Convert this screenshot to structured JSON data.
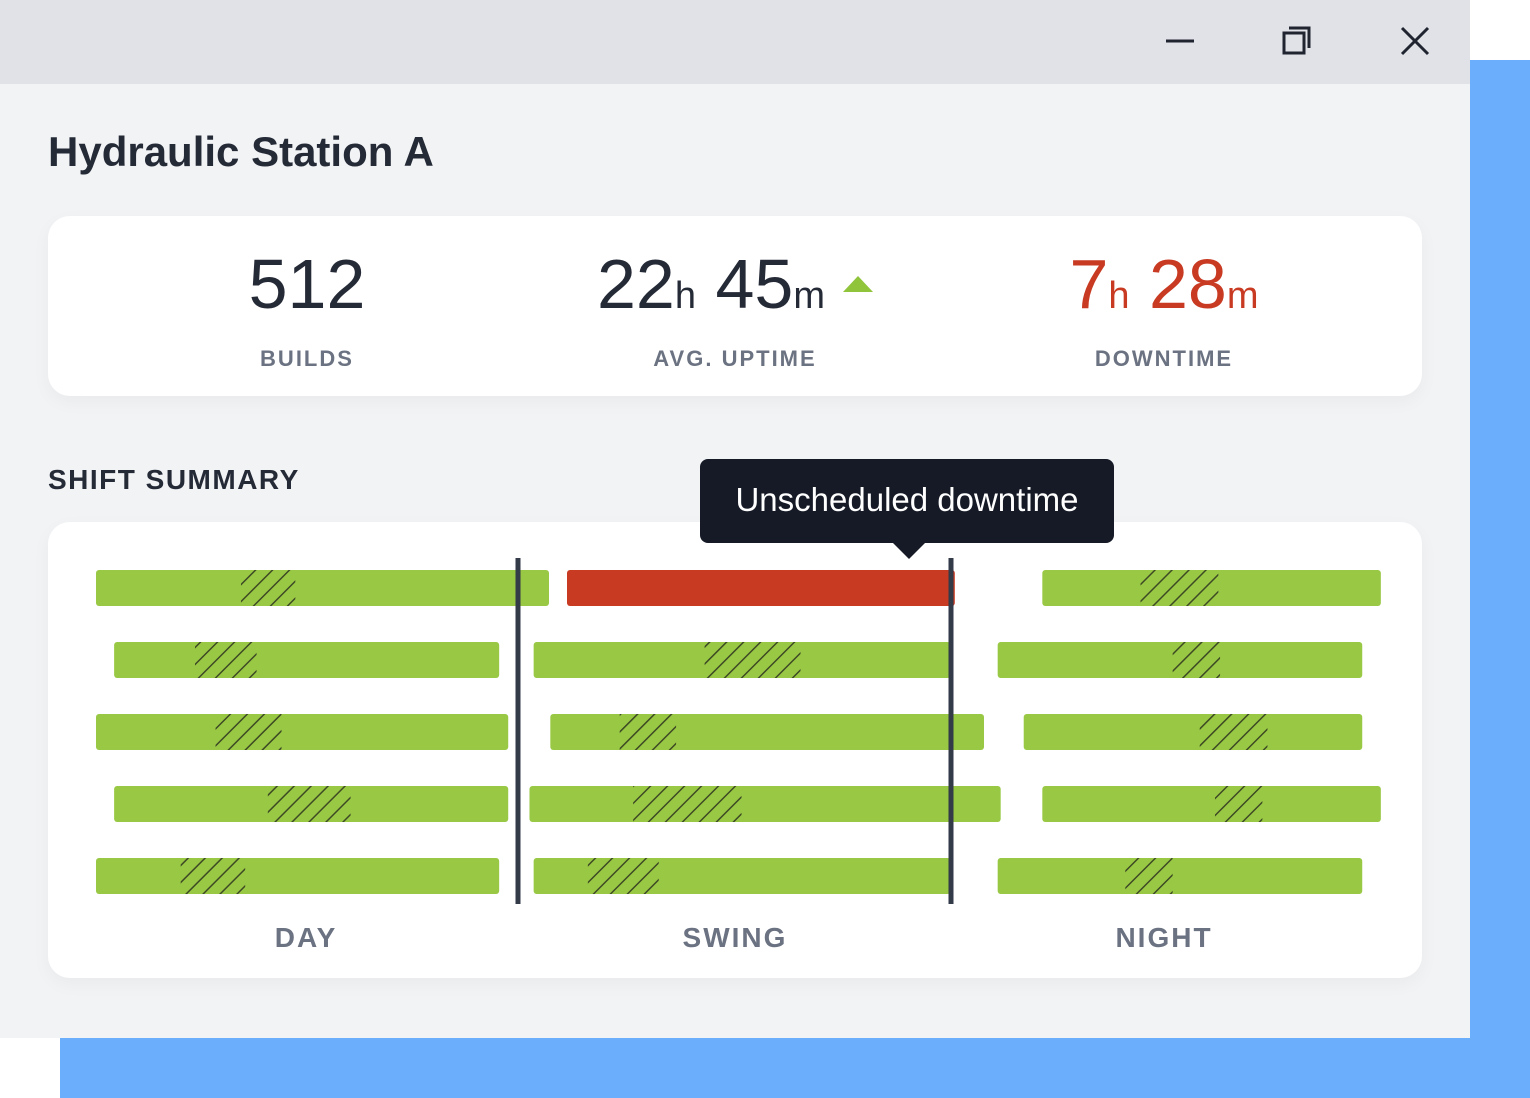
{
  "window": {
    "controls": [
      {
        "name": "minimize-button",
        "icon": "minimize-icon"
      },
      {
        "name": "restore-button",
        "icon": "restore-icon"
      },
      {
        "name": "close-button",
        "icon": "close-icon"
      }
    ]
  },
  "page": {
    "title": "Hydraulic Station A"
  },
  "stats": {
    "builds": {
      "value": "512",
      "label": "BUILDS"
    },
    "uptime": {
      "hours": "22",
      "hours_unit": "h",
      "minutes": "45",
      "minutes_unit": "m",
      "label": "AVG. UPTIME",
      "trend": "up",
      "trend_icon": "triangle-up-icon",
      "trend_color": "#8fc43b"
    },
    "downtime": {
      "hours": "7",
      "hours_unit": "h",
      "minutes": "28",
      "minutes_unit": "m",
      "label": "DOWNTIME",
      "color": "#c83a22"
    }
  },
  "shift_summary": {
    "title": "SHIFT SUMMARY",
    "tooltip": "Unscheduled downtime"
  },
  "chart_data": {
    "type": "timeline",
    "shifts": [
      "DAY",
      "SWING",
      "NIGHT"
    ],
    "colors": {
      "running": "#99c844",
      "downtime": "#c83a22",
      "hatch": "#3d4a24",
      "divider": "#333a48"
    },
    "rows": [
      {
        "day": {
          "start": 0.0,
          "end": 1.0,
          "hatch": [
            0.32,
            0.44
          ]
        },
        "swing": {
          "start": 0.0,
          "end": 0.93,
          "status": "downtime"
        },
        "night": {
          "start": 0.06,
          "end": 0.97,
          "hatch": [
            0.29,
            0.52
          ]
        }
      },
      {
        "day": {
          "start": 0.04,
          "end": 0.89,
          "hatch": [
            0.21,
            0.37
          ]
        },
        "swing": {
          "start": -0.08,
          "end": 0.92,
          "hatch": [
            0.41,
            0.64
          ]
        },
        "night": {
          "start": -0.06,
          "end": 0.92,
          "hatch": [
            0.48,
            0.61
          ]
        }
      },
      {
        "day": {
          "start": 0.0,
          "end": 0.91,
          "hatch": [
            0.29,
            0.45
          ]
        },
        "swing": {
          "start": -0.04,
          "end": 1.0,
          "hatch": [
            0.16,
            0.29
          ]
        },
        "night": {
          "start": 0.01,
          "end": 0.92,
          "hatch": [
            0.52,
            0.72
          ]
        }
      },
      {
        "day": {
          "start": 0.04,
          "end": 0.91,
          "hatch": [
            0.39,
            0.6
          ]
        },
        "swing": {
          "start": -0.09,
          "end": 1.04,
          "hatch": [
            0.22,
            0.45
          ]
        },
        "night": {
          "start": 0.06,
          "end": 0.97,
          "hatch": [
            0.51,
            0.65
          ]
        }
      },
      {
        "day": {
          "start": 0.0,
          "end": 0.89,
          "hatch": [
            0.21,
            0.37
          ]
        },
        "swing": {
          "start": -0.08,
          "end": 0.92,
          "hatch": [
            0.13,
            0.3
          ]
        },
        "night": {
          "start": -0.06,
          "end": 0.92,
          "hatch": [
            0.35,
            0.48
          ]
        }
      }
    ]
  }
}
